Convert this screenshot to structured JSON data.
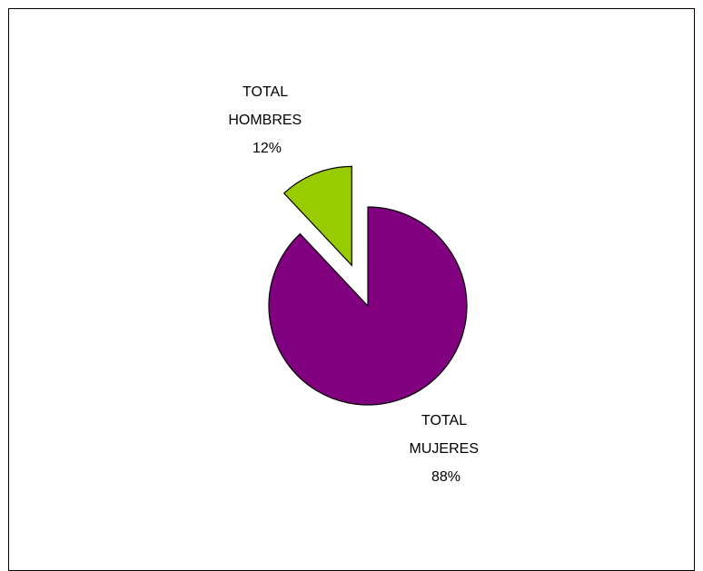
{
  "chart_data": {
    "type": "pie",
    "slices": [
      {
        "label_lines": [
          "TOTAL",
          "HOMBRES",
          "12%"
        ],
        "value": 12,
        "color": "#99cc00",
        "exploded": true
      },
      {
        "label_lines": [
          "TOTAL",
          "MUJERES",
          "88%"
        ],
        "value": 88,
        "color": "#800080",
        "exploded": false
      }
    ],
    "legend": "none"
  }
}
